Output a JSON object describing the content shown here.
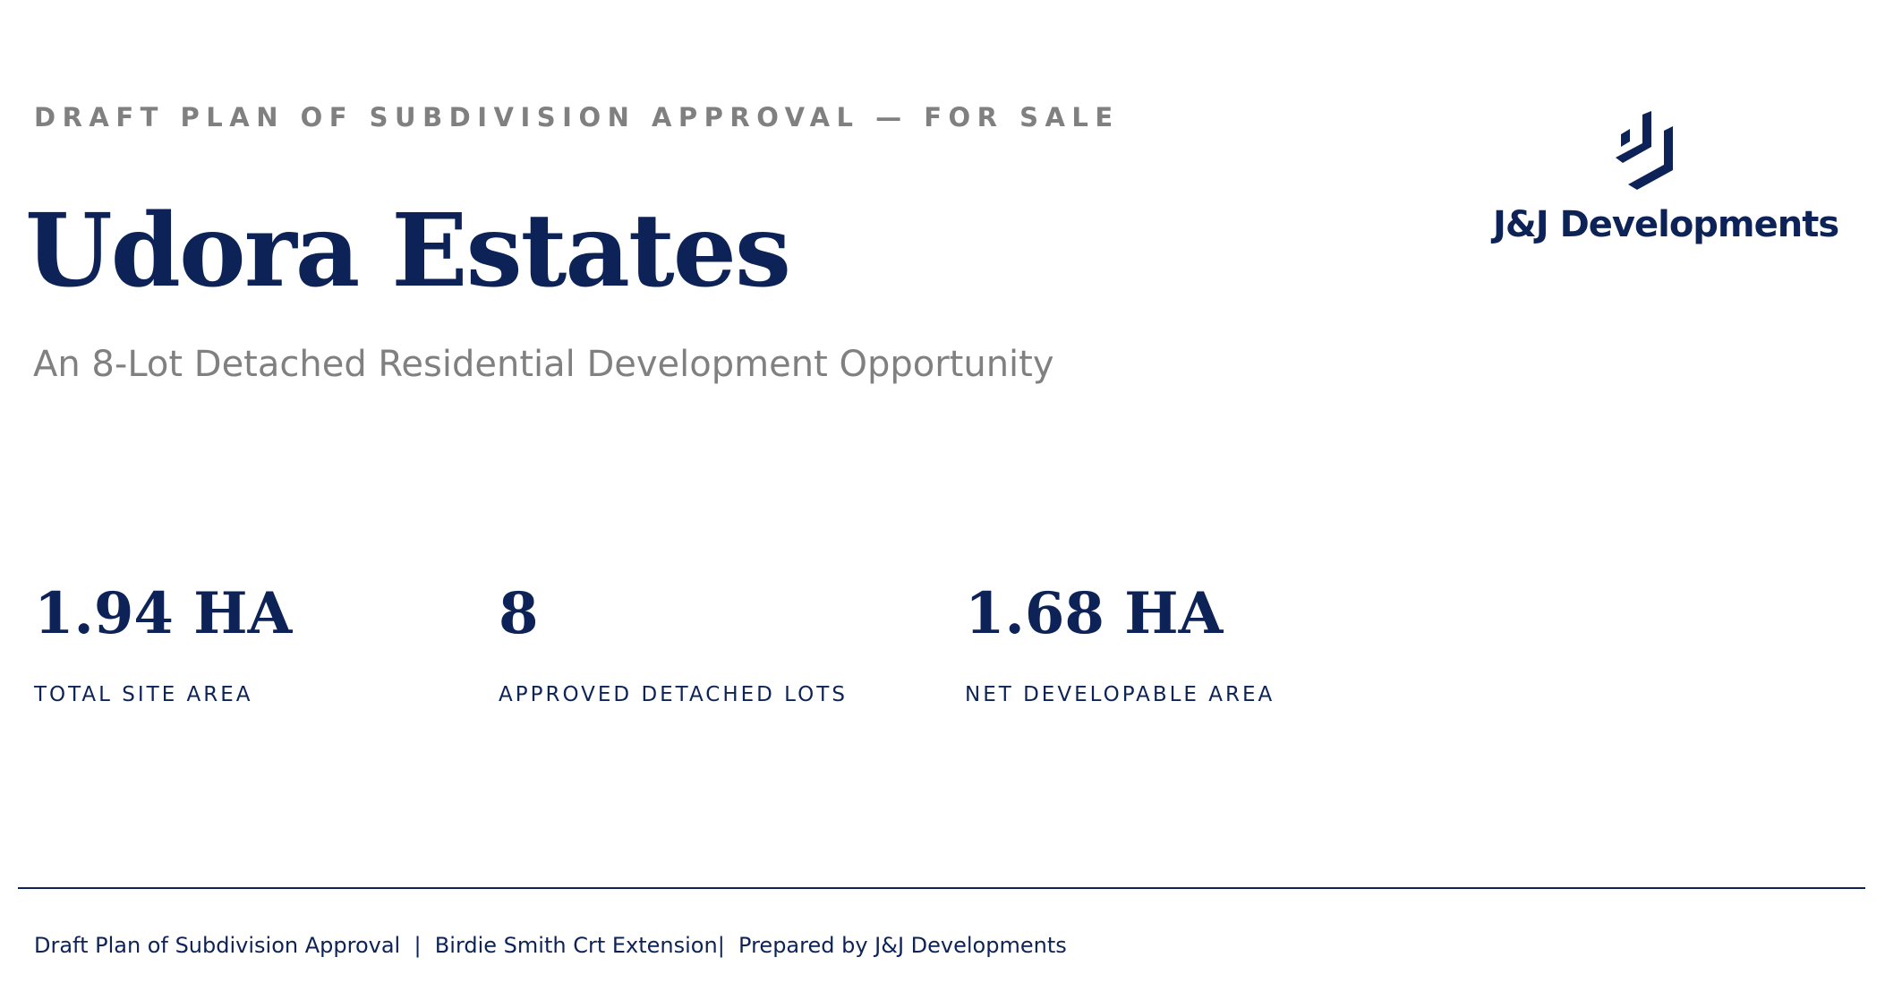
{
  "header": {
    "eyebrow": "DRAFT PLAN OF SUBDIVISION APPROVAL — FOR SALE",
    "title": "Udora Estates",
    "subtitle": "An 8-Lot Detached Residential Development Opportunity"
  },
  "logo": {
    "name": "J&J Developments"
  },
  "stats": [
    {
      "value": "1.94 HA",
      "label": "TOTAL SITE AREA"
    },
    {
      "value": "8",
      "label": "APPROVED DETACHED LOTS"
    },
    {
      "value": "1.68 HA",
      "label": "NET DEVELOPABLE AREA"
    }
  ],
  "footer": {
    "text": "Draft Plan of Subdivision Approval  |  Birdie Smith Crt Extension|  Prepared by J&J Developments"
  }
}
